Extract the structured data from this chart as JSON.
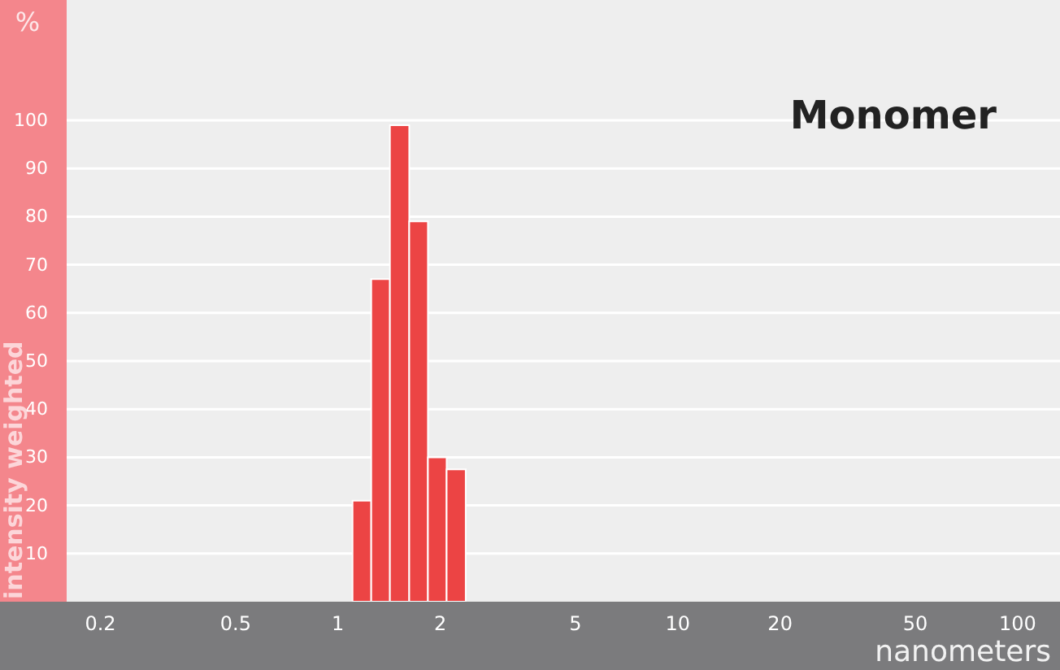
{
  "chart_data": {
    "type": "histogram",
    "title": "Monomer",
    "xlabel": "nanometers",
    "ylabel": "intensity weighted",
    "annotations": [
      "%"
    ],
    "bins": [
      1.11,
      1.26,
      1.43,
      1.63,
      1.85,
      2.1,
      2.39
    ],
    "values": [
      21,
      67,
      99,
      79,
      30,
      27.5
    ],
    "color": "#ec4444",
    "log": "x",
    "xlim": [
      0.16,
      134
    ],
    "xticks": [
      0.2,
      0.5,
      1,
      2,
      5,
      10,
      20,
      50,
      100
    ],
    "ylim": [
      0,
      125
    ],
    "yticks": [
      10,
      20,
      30,
      40,
      50,
      60,
      70,
      80,
      90,
      100
    ],
    "grid": "y"
  }
}
